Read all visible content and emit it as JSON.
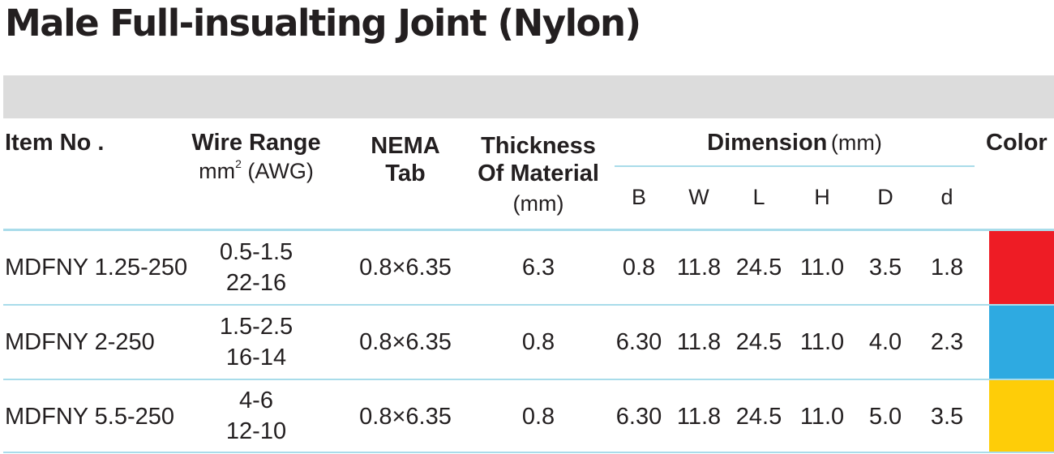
{
  "title": "Male Full-insualting Joint (Nylon)",
  "headers": {
    "item_no": "Item No .",
    "wire_range": "Wire Range",
    "wire_unit_base": "mm",
    "wire_unit_sup": "2",
    "wire_unit_rest": "(AWG)",
    "nema_line1": "NEMA",
    "nema_line2": "Tab",
    "thickness_line1": "Thickness",
    "thickness_line2": "Of Material",
    "thickness_line3": "(mm)",
    "dimension": "Dimension",
    "dimension_unit": "(mm)",
    "color": "Color",
    "dims": [
      "B",
      "W",
      "L",
      "H",
      "D",
      "d"
    ]
  },
  "rows": [
    {
      "item_no": "MDFNY 1.25-250",
      "wire_mm2": "0.5-1.5",
      "wire_awg": "22-16",
      "nema_tab": "0.8×6.35",
      "thickness": "6.3",
      "dims": [
        "0.8",
        "11.8",
        "24.5",
        "11.0",
        "3.5",
        "1.8"
      ],
      "color": "#ee1c25"
    },
    {
      "item_no": "MDFNY 2-250",
      "wire_mm2": "1.5-2.5",
      "wire_awg": "16-14",
      "nema_tab": "0.8×6.35",
      "thickness": "0.8",
      "dims": [
        "6.30",
        "11.8",
        "24.5",
        "11.0",
        "4.0",
        "2.3"
      ],
      "color": "#2eaae1"
    },
    {
      "item_no": "MDFNY 5.5-250",
      "wire_mm2": "4-6",
      "wire_awg": "12-10",
      "nema_tab": "0.8×6.35",
      "thickness": "0.8",
      "dims": [
        "6.30",
        "11.8",
        "24.5",
        "11.0",
        "5.0",
        "3.5"
      ],
      "color": "#fecd08"
    }
  ]
}
